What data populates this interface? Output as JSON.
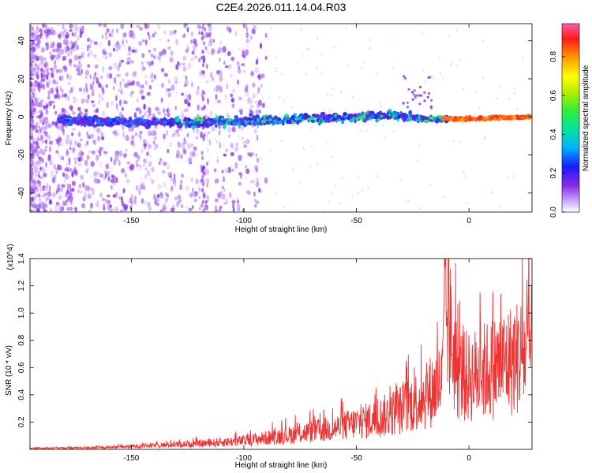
{
  "title": "C2E4.2026.011.14.04.R03",
  "chart_data": [
    {
      "type": "heatmap",
      "title": "C2E4.2026.011.14.04.R03",
      "xlabel": "Height of straight line (km)",
      "ylabel": "Frequency (Hz)",
      "xlim": [
        -195,
        28
      ],
      "ylim": [
        -50,
        49
      ],
      "x_ticks": [
        -150,
        -100,
        -50,
        0
      ],
      "y_ticks": [
        -40,
        -20,
        0,
        20,
        40
      ],
      "colorbar": {
        "label": "Normalized spectral amplitude",
        "range": [
          0,
          0.97
        ],
        "ticks": [
          0.0,
          0.2,
          0.4,
          0.6,
          0.8
        ],
        "colors": [
          "#ffffff",
          "#8a2be2",
          "#0000ff",
          "#00bfff",
          "#00ff80",
          "#7fff00",
          "#ffff00",
          "#ff8000",
          "#ff0000",
          "#ff66cc"
        ]
      },
      "ridge": {
        "description_points_x": [
          -180,
          -150,
          -120,
          -100,
          -75,
          -50,
          -35,
          -20,
          -10,
          0,
          28
        ],
        "description_points_y": [
          -2,
          -3,
          -3,
          -2,
          -1,
          0,
          1,
          -1,
          -1,
          -1,
          0
        ],
        "peak_amplitude_x_range": [
          -12,
          28
        ]
      }
    },
    {
      "type": "line",
      "xlabel": "Height of straight line (km)",
      "ylabel": "SNR (10 * v/v)",
      "y_multiplier": "(x10^4)",
      "xlim": [
        -195,
        28
      ],
      "ylim": [
        0,
        1.4
      ],
      "x_ticks": [
        -150,
        -100,
        -50,
        0
      ],
      "y_ticks": [
        0.2,
        0.4,
        0.6,
        0.8,
        1.0,
        1.2,
        1.4
      ],
      "series": [
        {
          "color": "#ee3333",
          "envelope_x": [
            -195,
            -160,
            -140,
            -120,
            -100,
            -80,
            -60,
            -40,
            -30,
            -20,
            -12,
            -10,
            -5,
            0,
            10,
            20,
            28
          ],
          "envelope_y": [
            0.01,
            0.02,
            0.04,
            0.06,
            0.09,
            0.15,
            0.22,
            0.33,
            0.42,
            0.55,
            0.7,
            1.4,
            0.8,
            0.75,
            0.85,
            0.95,
            1.05
          ]
        }
      ]
    }
  ]
}
